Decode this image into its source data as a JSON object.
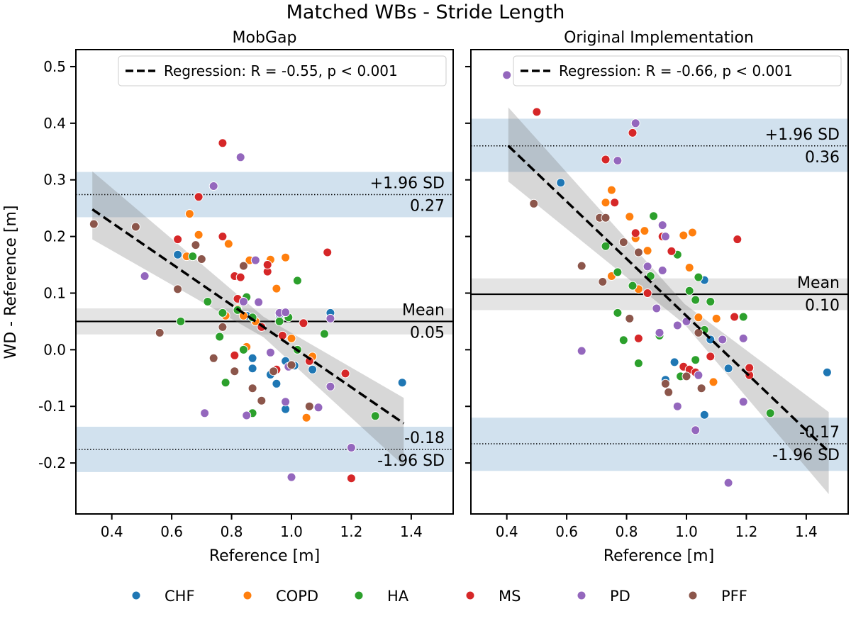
{
  "figure": {
    "title": "Matched WBs - Stride Length",
    "ylabel": "WD - Reference [m]"
  },
  "legend": {
    "entries": [
      {
        "name": "CHF",
        "color": "#1f77b4"
      },
      {
        "name": "COPD",
        "color": "#ff7f0e"
      },
      {
        "name": "HA",
        "color": "#2ca02c"
      },
      {
        "name": "MS",
        "color": "#d62728"
      },
      {
        "name": "PD",
        "color": "#9467bd"
      },
      {
        "name": "PFF",
        "color": "#8c564b"
      }
    ]
  },
  "chart_data": [
    {
      "type": "scatter",
      "title": "MobGap",
      "xlabel": "Reference [m]",
      "ylabel": "WD - Reference [m]",
      "xlim": [
        0.28,
        1.54
      ],
      "ylim": [
        -0.29,
        0.53
      ],
      "xticks": [
        "0.4",
        "0.6",
        "0.8",
        "1.0",
        "1.2",
        "1.4"
      ],
      "yticks": [
        "-0.2",
        "-0.1",
        "0.0",
        "0.1",
        "0.2",
        "0.3",
        "0.4",
        "0.5"
      ],
      "regression": {
        "label": "Regression: R = -0.55, p < 0.001",
        "x": [
          0.335,
          1.375
        ],
        "y": [
          0.248,
          -0.13
        ],
        "ci_upper": [
          0.315,
          -0.085
        ],
        "ci_lower": [
          0.195,
          -0.205
        ]
      },
      "loa": {
        "mean": 0.05,
        "mean_band": [
          0.027,
          0.073
        ],
        "mean_label": "Mean",
        "mean_value_label": "0.05",
        "upper": 0.274,
        "upper_band": [
          0.234,
          0.314
        ],
        "upper_label": "+1.96 SD",
        "upper_value_label": "0.27",
        "lower": -0.176,
        "lower_band": [
          -0.216,
          -0.136
        ],
        "lower_label": "-1.96 SD",
        "lower_value_label": "-0.18"
      },
      "series": [
        {
          "name": "CHF",
          "points": [
            [
              0.62,
              0.168
            ],
            [
              0.85,
              0.06
            ],
            [
              0.87,
              -0.033
            ],
            [
              0.87,
              -0.015
            ],
            [
              0.93,
              -0.044
            ],
            [
              0.95,
              -0.06
            ],
            [
              0.98,
              -0.105
            ],
            [
              0.98,
              -0.02
            ],
            [
              1.01,
              -0.028
            ],
            [
              1.07,
              -0.035
            ],
            [
              1.13,
              0.065
            ],
            [
              1.37,
              -0.058
            ],
            [
              0.96,
              0.062
            ]
          ]
        },
        {
          "name": "COPD",
          "points": [
            [
              0.65,
              0.165
            ],
            [
              0.66,
              0.24
            ],
            [
              0.69,
              0.203
            ],
            [
              0.78,
              0.06
            ],
            [
              0.79,
              0.187
            ],
            [
              0.82,
              0.072
            ],
            [
              0.85,
              0.005
            ],
            [
              0.86,
              0.158
            ],
            [
              0.88,
              0.05
            ],
            [
              0.93,
              0.159
            ],
            [
              0.95,
              0.108
            ],
            [
              0.98,
              0.163
            ],
            [
              1.0,
              0.02
            ],
            [
              1.05,
              -0.12
            ],
            [
              1.07,
              -0.012
            ],
            [
              0.84,
              0.06
            ]
          ]
        },
        {
          "name": "HA",
          "points": [
            [
              0.63,
              0.05
            ],
            [
              0.67,
              0.165
            ],
            [
              0.72,
              0.085
            ],
            [
              0.76,
              0.023
            ],
            [
              0.77,
              0.065
            ],
            [
              0.78,
              -0.058
            ],
            [
              0.82,
              0.07
            ],
            [
              0.84,
              0.0
            ],
            [
              0.85,
              0.093
            ],
            [
              0.87,
              -0.112
            ],
            [
              0.87,
              0.057
            ],
            [
              0.96,
              0.05
            ],
            [
              0.99,
              0.057
            ],
            [
              1.02,
              0.0
            ],
            [
              1.02,
              0.122
            ],
            [
              1.11,
              0.028
            ],
            [
              1.28,
              -0.117
            ]
          ]
        },
        {
          "name": "MS",
          "points": [
            [
              0.62,
              0.195
            ],
            [
              0.77,
              0.2
            ],
            [
              0.77,
              0.365
            ],
            [
              0.81,
              0.13
            ],
            [
              0.81,
              -0.01
            ],
            [
              0.82,
              0.09
            ],
            [
              0.83,
              0.128
            ],
            [
              0.9,
              0.04
            ],
            [
              0.92,
              0.138
            ],
            [
              0.92,
              0.15
            ],
            [
              0.95,
              -0.035
            ],
            [
              0.97,
              0.025
            ],
            [
              1.04,
              0.047
            ],
            [
              1.06,
              -0.02
            ],
            [
              1.12,
              0.172
            ],
            [
              1.18,
              -0.042
            ],
            [
              1.2,
              -0.227
            ],
            [
              0.69,
              0.27
            ]
          ]
        },
        {
          "name": "PD",
          "points": [
            [
              0.51,
              0.13
            ],
            [
              0.71,
              -0.112
            ],
            [
              0.74,
              0.289
            ],
            [
              0.83,
              0.34
            ],
            [
              0.84,
              0.085
            ],
            [
              0.85,
              -0.116
            ],
            [
              0.88,
              0.158
            ],
            [
              0.89,
              0.084
            ],
            [
              0.93,
              -0.005
            ],
            [
              0.96,
              0.065
            ],
            [
              0.98,
              0.066
            ],
            [
              0.98,
              -0.092
            ],
            [
              0.99,
              -0.03
            ],
            [
              1.0,
              -0.225
            ],
            [
              1.09,
              -0.102
            ],
            [
              1.13,
              0.055
            ],
            [
              1.13,
              -0.065
            ],
            [
              1.2,
              -0.173
            ]
          ]
        },
        {
          "name": "PFF",
          "points": [
            [
              0.34,
              0.222
            ],
            [
              0.48,
              0.217
            ],
            [
              0.56,
              0.03
            ],
            [
              0.62,
              0.107
            ],
            [
              0.68,
              0.185
            ],
            [
              0.7,
              0.16
            ],
            [
              0.74,
              -0.015
            ],
            [
              0.77,
              0.04
            ],
            [
              0.81,
              -0.038
            ],
            [
              0.84,
              0.148
            ],
            [
              0.87,
              -0.068
            ],
            [
              0.9,
              -0.09
            ],
            [
              0.94,
              -0.038
            ],
            [
              1.0,
              -0.027
            ],
            [
              1.06,
              -0.1
            ]
          ]
        }
      ]
    },
    {
      "type": "scatter",
      "title": "Original Implementation",
      "xlabel": "Reference [m]",
      "ylabel": "",
      "xlim": [
        0.28,
        1.54
      ],
      "ylim": [
        -0.29,
        0.53
      ],
      "xticks": [
        "0.4",
        "0.6",
        "0.8",
        "1.0",
        "1.2",
        "1.4"
      ],
      "yticks": [
        "-0.2",
        "-0.1",
        "0.0",
        "0.1",
        "0.2",
        "0.3",
        "0.4",
        "0.5"
      ],
      "regression": {
        "label": "Regression: R = -0.66, p < 0.001",
        "x": [
          0.405,
          1.475
        ],
        "y": [
          0.36,
          -0.18
        ],
        "ci_upper": [
          0.428,
          -0.11
        ],
        "ci_lower": [
          0.297,
          -0.255
        ]
      },
      "loa": {
        "mean": 0.098,
        "mean_band": [
          0.07,
          0.126
        ],
        "mean_label": "Mean",
        "mean_value_label": "0.10",
        "upper": 0.36,
        "upper_band": [
          0.314,
          0.408
        ],
        "upper_label": "+1.96 SD",
        "upper_value_label": "0.36",
        "lower": -0.166,
        "lower_band": [
          -0.214,
          -0.12
        ],
        "lower_label": "-1.96 SD",
        "lower_value_label": "-0.17"
      },
      "series": [
        {
          "name": "CHF",
          "points": [
            [
              0.58,
              0.295
            ],
            [
              0.93,
              -0.053
            ],
            [
              0.96,
              -0.022
            ],
            [
              1.06,
              -0.115
            ],
            [
              1.06,
              0.123
            ],
            [
              1.08,
              0.018
            ],
            [
              1.14,
              -0.033
            ],
            [
              1.47,
              -0.04
            ]
          ]
        },
        {
          "name": "COPD",
          "points": [
            [
              0.73,
              0.26
            ],
            [
              0.75,
              0.282
            ],
            [
              0.75,
              0.13
            ],
            [
              0.81,
              0.235
            ],
            [
              0.83,
              0.197
            ],
            [
              0.84,
              0.107
            ],
            [
              0.86,
              0.21
            ],
            [
              0.87,
              0.175
            ],
            [
              0.93,
              0.2
            ],
            [
              0.99,
              0.202
            ],
            [
              1.01,
              0.145
            ],
            [
              1.02,
              0.207
            ],
            [
              1.04,
              0.057
            ],
            [
              1.09,
              -0.057
            ],
            [
              1.1,
              0.055
            ]
          ]
        },
        {
          "name": "HA",
          "points": [
            [
              0.73,
              0.183
            ],
            [
              0.77,
              0.065
            ],
            [
              0.77,
              0.137
            ],
            [
              0.79,
              0.017
            ],
            [
              0.82,
              0.113
            ],
            [
              0.84,
              -0.024
            ],
            [
              0.88,
              0.13
            ],
            [
              0.89,
              0.236
            ],
            [
              0.91,
              0.025
            ],
            [
              0.97,
              0.168
            ],
            [
              0.98,
              -0.047
            ],
            [
              1.01,
              0.104
            ],
            [
              1.03,
              0.088
            ],
            [
              1.03,
              -0.018
            ],
            [
              1.04,
              0.128
            ],
            [
              1.06,
              0.035
            ],
            [
              1.08,
              0.085
            ],
            [
              1.19,
              0.058
            ],
            [
              1.28,
              -0.112
            ]
          ]
        },
        {
          "name": "MS",
          "points": [
            [
              0.5,
              0.42
            ],
            [
              0.73,
              0.336
            ],
            [
              0.76,
              0.26
            ],
            [
              0.82,
              0.383
            ],
            [
              0.83,
              0.206
            ],
            [
              0.84,
              0.02
            ],
            [
              0.87,
              0.1
            ],
            [
              0.92,
              0.2
            ],
            [
              0.95,
              0.174
            ],
            [
              0.99,
              -0.03
            ],
            [
              1.01,
              -0.035
            ],
            [
              1.03,
              -0.04
            ],
            [
              1.08,
              -0.012
            ],
            [
              1.16,
              0.058
            ],
            [
              1.17,
              0.195
            ],
            [
              1.21,
              -0.045
            ],
            [
              1.21,
              -0.032
            ]
          ]
        },
        {
          "name": "PD",
          "points": [
            [
              0.4,
              0.485
            ],
            [
              0.65,
              -0.002
            ],
            [
              0.77,
              0.334
            ],
            [
              0.83,
              0.4
            ],
            [
              0.87,
              0.147
            ],
            [
              0.9,
              0.073
            ],
            [
              0.91,
              0.03
            ],
            [
              0.92,
              0.22
            ],
            [
              0.92,
              0.14
            ],
            [
              0.93,
              0.2
            ],
            [
              0.97,
              -0.1
            ],
            [
              0.97,
              0.043
            ],
            [
              1.0,
              0.05
            ],
            [
              1.03,
              -0.142
            ],
            [
              1.04,
              -0.045
            ],
            [
              1.12,
              0.018
            ],
            [
              1.14,
              -0.235
            ],
            [
              1.19,
              0.02
            ],
            [
              1.19,
              -0.092
            ]
          ]
        },
        {
          "name": "PFF",
          "points": [
            [
              0.49,
              0.258
            ],
            [
              0.65,
              0.148
            ],
            [
              0.71,
              0.233
            ],
            [
              0.72,
              0.12
            ],
            [
              0.73,
              0.233
            ],
            [
              0.79,
              0.19
            ],
            [
              0.81,
              0.055
            ],
            [
              0.84,
              0.172
            ],
            [
              0.93,
              -0.06
            ],
            [
              0.94,
              -0.075
            ],
            [
              1.0,
              -0.047
            ],
            [
              1.04,
              0.03
            ],
            [
              1.05,
              -0.068
            ]
          ]
        }
      ]
    }
  ]
}
